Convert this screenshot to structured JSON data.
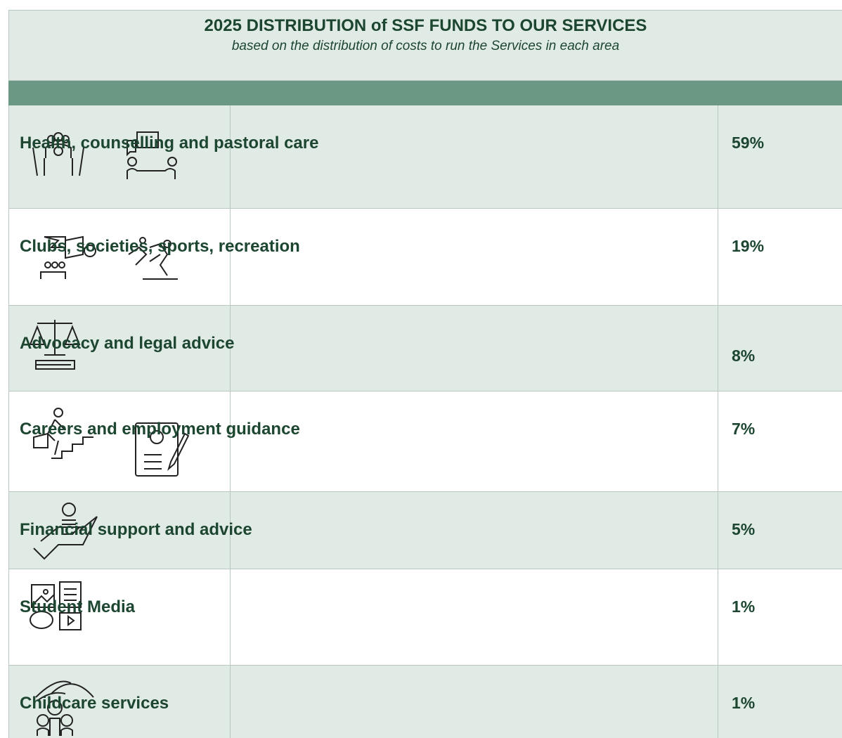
{
  "header": {
    "title": "2025 DISTRIBUTION of SSF FUNDS TO OUR SERVICES",
    "subtitle": "based on the distribution of costs to run the Services in each area"
  },
  "table": {
    "rows": [
      [
        "Health, counselling and pastoral care",
        "59%"
      ],
      [
        "Clubs, societies, sports, recreation",
        "19%"
      ],
      [
        "Advocacy and legal advice",
        "8%"
      ],
      [
        "Careers and employment guidance",
        "7%"
      ],
      [
        "Financial support and advice",
        "5%"
      ],
      [
        "Student Media",
        "1%"
      ],
      [
        "Childcare services",
        "1%"
      ]
    ]
  }
}
